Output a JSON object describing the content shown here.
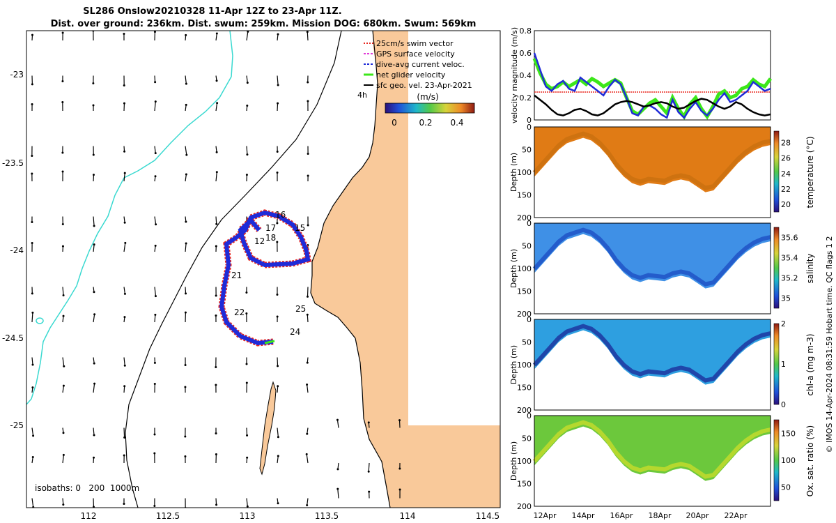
{
  "title_line1": "SL286 Onslow20210328 11-Apr 12Z to 23-Apr 11Z.",
  "title_line2": "Dist. over ground: 236km. Dist. swum: 259km. Mission DOG: 680km. Swum: 569km",
  "map": {
    "lon_ticks": [
      "112",
      "112.5",
      "113",
      "113.5",
      "114",
      "114.5"
    ],
    "lat_ticks": [
      "-23",
      "-23.5",
      "-24",
      "-24.5",
      "-25"
    ],
    "isobath_note": "isobaths: 0   200  1000m",
    "day_labels": [
      "15",
      "16",
      "17",
      "18",
      "12",
      "21",
      "22",
      "24",
      "25"
    ],
    "legend": [
      {
        "label": "25cm/s swim vector",
        "color": "#e8271f"
      },
      {
        "label": "GPS surface velocity",
        "color": "#e23ad8"
      },
      {
        "label": "dive-avg current veloc.",
        "color": "#1f2bd8"
      },
      {
        "label": "net glider velocity",
        "color": "#3ce71a"
      },
      {
        "label": "sfc geo. vel. 23-Apr-2021",
        "color": "#000000"
      }
    ],
    "legend_tag": "4h",
    "colorbar_unit": "(m/s)",
    "colorbar_ticks": [
      "0",
      "0.2",
      "0.4"
    ]
  },
  "chart_data": [
    {
      "type": "line",
      "title": "",
      "ylabel": "velocity magnitude (m/s)",
      "ylim": [
        0,
        0.8
      ],
      "yticks": [
        "0",
        "0.2",
        "0.4",
        "0.6",
        "0.8"
      ],
      "threshold": 0.25,
      "series": [
        {
          "name": "net glider velocity",
          "color": "#3ce71a",
          "values": [
            0.55,
            0.42,
            0.32,
            0.28,
            0.3,
            0.34,
            0.3,
            0.33,
            0.36,
            0.32,
            0.37,
            0.34,
            0.3,
            0.33,
            0.36,
            0.33,
            0.2,
            0.08,
            0.05,
            0.1,
            0.15,
            0.18,
            0.12,
            0.06,
            0.2,
            0.1,
            0.03,
            0.14,
            0.2,
            0.1,
            0.03,
            0.12,
            0.23,
            0.26,
            0.2,
            0.22,
            0.28,
            0.3,
            0.36,
            0.32,
            0.3,
            0.37
          ]
        },
        {
          "name": "dive-avg current veloc.",
          "color": "#1f2bd8",
          "values": [
            0.6,
            0.45,
            0.3,
            0.26,
            0.32,
            0.35,
            0.28,
            0.26,
            0.38,
            0.34,
            0.3,
            0.26,
            0.22,
            0.3,
            0.36,
            0.32,
            0.2,
            0.06,
            0.04,
            0.12,
            0.13,
            0.1,
            0.05,
            0.02,
            0.18,
            0.07,
            0.02,
            0.1,
            0.16,
            0.08,
            0.04,
            0.1,
            0.18,
            0.24,
            0.16,
            0.18,
            0.22,
            0.26,
            0.34,
            0.3,
            0.26,
            0.28
          ]
        },
        {
          "name": "sfc geo. vel.",
          "color": "#000000",
          "values": [
            0.22,
            0.18,
            0.14,
            0.09,
            0.05,
            0.04,
            0.06,
            0.09,
            0.1,
            0.08,
            0.05,
            0.04,
            0.06,
            0.1,
            0.14,
            0.16,
            0.17,
            0.16,
            0.14,
            0.12,
            0.13,
            0.15,
            0.16,
            0.15,
            0.12,
            0.1,
            0.11,
            0.14,
            0.17,
            0.19,
            0.18,
            0.15,
            0.12,
            0.1,
            0.12,
            0.16,
            0.14,
            0.1,
            0.07,
            0.05,
            0.04,
            0.05
          ]
        }
      ]
    },
    {
      "type": "heatmap",
      "ylabel": "Depth (m)",
      "clabel": "temperature (°C)",
      "yticks": [
        "0",
        "50",
        "100",
        "150",
        "200"
      ],
      "ctick_values": [
        20,
        22,
        24,
        26,
        28
      ],
      "crange": [
        19,
        29.5
      ]
    },
    {
      "type": "heatmap",
      "ylabel": "Depth (m)",
      "clabel": "salinity",
      "yticks": [
        "0",
        "50",
        "100",
        "150",
        "200"
      ],
      "ctick_values": [
        "35",
        "35.2",
        "35.4",
        "35.6"
      ],
      "crange": [
        34.9,
        35.7
      ]
    },
    {
      "type": "heatmap",
      "ylabel": "Depth (m)",
      "clabel": "chl-a (mg m-3)",
      "yticks": [
        "0",
        "50",
        "100",
        "150",
        "200"
      ],
      "ctick_values": [
        "0",
        "1",
        "2"
      ],
      "crange": [
        0,
        2
      ]
    },
    {
      "type": "heatmap",
      "ylabel": "Depth (m)",
      "clabel": "Ox. sat. ratio (%)",
      "yticks": [
        "0",
        "50",
        "100",
        "150",
        "200"
      ],
      "ctick_values": [
        "50",
        "100",
        "150"
      ],
      "crange": [
        25,
        175
      ]
    }
  ],
  "time_axis": {
    "ticks": [
      "12Apr",
      "14Apr",
      "16Apr",
      "18Apr",
      "20Apr",
      "22Apr"
    ]
  },
  "credit": "© IMOS 14-Apr-2024 08:31:59 Hobart time. QC flags 1  2"
}
